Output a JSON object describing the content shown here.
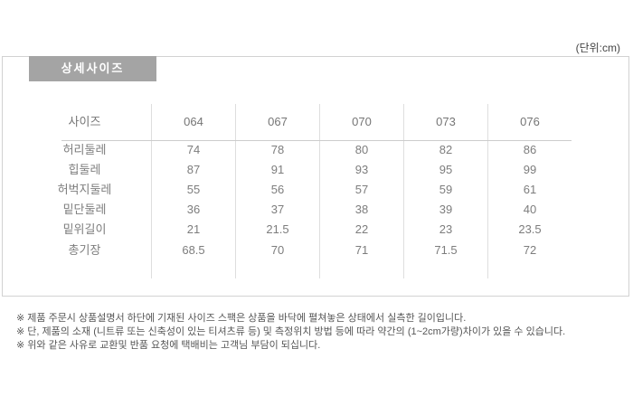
{
  "page": {
    "unit_label": "(단위:cm)",
    "section_title": "상세사이즈"
  },
  "size_table": {
    "header": [
      "사이즈",
      "064",
      "067",
      "070",
      "073",
      "076"
    ],
    "rows": [
      {
        "label": "허리둘레",
        "values": [
          "74",
          "78",
          "80",
          "82",
          "86"
        ]
      },
      {
        "label": "힙둘레",
        "values": [
          "87",
          "91",
          "93",
          "95",
          "99"
        ]
      },
      {
        "label": "허벅지둘레",
        "values": [
          "55",
          "56",
          "57",
          "59",
          "61"
        ]
      },
      {
        "label": "밑단둘레",
        "values": [
          "36",
          "37",
          "38",
          "39",
          "40"
        ]
      },
      {
        "label": "밑위길이",
        "values": [
          "21",
          "21.5",
          "22",
          "23",
          "23.5"
        ]
      },
      {
        "label": "총기장",
        "values": [
          "68.5",
          "70",
          "71",
          "71.5",
          "72"
        ]
      }
    ]
  },
  "notes": [
    "※ 제품 주문시 상품설명서 하단에 기재된 사이즈 스팩은 상품을 바닥에 펼쳐놓은 상태에서 실측한 길이입니다.",
    "※ 단, 제품의 소재 (니트류 또는 신축성이 있는 티셔츠류 등) 및 측정위치 방법 등에 따라 약간의 (1~2cm가량)차이가 있을 수 있습니다.",
    "※ 위와 같은 사유로 교환및 반품 요청에 택배비는 고객님 부담이 되십니다."
  ],
  "colors": {
    "badge_bg": "#a4a4a4",
    "box_border": "#d2d2d2",
    "column_divider": "#dedede",
    "header_underline": "#cccccc",
    "table_text": "#7d7d7d",
    "note_text": "#565656"
  }
}
